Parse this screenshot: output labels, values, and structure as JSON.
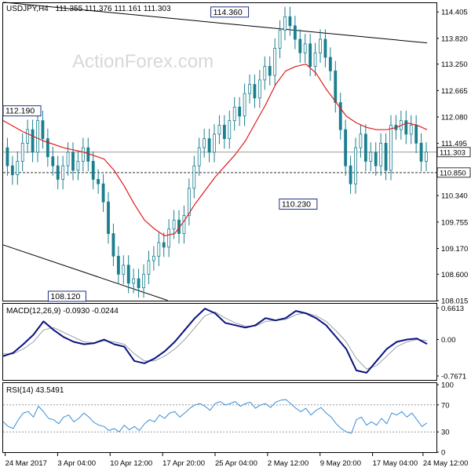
{
  "header": {
    "symbol": "USDJPY,H4",
    "ohlc": "111.355 111.376 111.161 111.303"
  },
  "watermark": "ActionForex.com",
  "colors": {
    "candles": "#1a7f8e",
    "ma": "#e01b1b",
    "trendline": "#000000",
    "macd_line": "#0a1280",
    "macd_signal": "#9aa0a6",
    "rsi_line": "#3b8fd9",
    "rsi_levels": "#999999",
    "price_line": "#999999",
    "level_line": "#333333"
  },
  "x_axis": {
    "labels": [
      "24 Mar 2017",
      "3 Apr 04:00",
      "10 Apr 12:00",
      "17 Apr 20:00",
      "25 Apr 04:00",
      "2 May 12:00",
      "9 May 20:00",
      "17 May 04:00",
      "24 May 12:00"
    ],
    "label_positions": [
      2,
      54,
      106,
      158,
      210,
      262,
      314,
      366,
      416
    ]
  },
  "chart_data": [
    {
      "type": "line",
      "panel": "price",
      "ylim": [
        108.015,
        114.6
      ],
      "y_ticks": [
        "114.405",
        "113.820",
        "113.250",
        "112.665",
        "112.080",
        "111.495",
        "110.340",
        "109.755",
        "109.170",
        "108.600",
        "108.015"
      ],
      "y_tick_values": [
        114.405,
        113.82,
        113.25,
        112.665,
        112.08,
        111.495,
        110.34,
        109.755,
        109.17,
        108.6,
        108.015
      ],
      "current_price": {
        "label": "111.303",
        "value": 111.303
      },
      "support_level": {
        "label": "110.850",
        "value": 110.85
      },
      "annotations": [
        {
          "label": "112.190",
          "x": 8,
          "value": 112.19
        },
        {
          "label": "108.120",
          "x": 82,
          "value": 108.12
        },
        {
          "label": "114.360",
          "x": 240,
          "value": 114.36
        },
        {
          "label": "110.230",
          "x": 297,
          "value": 110.23
        }
      ],
      "trendlines": [
        {
          "x": [
            0,
            420
          ],
          "y": [
            114.62,
            113.72
          ]
        },
        {
          "x": [
            0,
            163
          ],
          "y": [
            109.25,
            108.02
          ]
        }
      ],
      "series": [
        {
          "role": "close",
          "x": [
            0,
            5,
            10,
            15,
            20,
            25,
            30,
            35,
            40,
            45,
            50,
            55,
            60,
            65,
            70,
            75,
            80,
            85,
            90,
            95,
            100,
            105,
            110,
            115,
            120,
            125,
            130,
            135,
            140,
            145,
            150,
            155,
            160,
            165,
            170,
            175,
            180,
            185,
            190,
            195,
            200,
            205,
            210,
            215,
            220,
            225,
            230,
            235,
            240,
            245,
            250,
            255,
            260,
            265,
            270,
            275,
            280,
            285,
            290,
            295,
            300,
            305,
            310,
            315,
            320,
            325,
            330,
            335,
            340,
            345,
            350,
            355,
            360,
            365,
            370,
            375,
            380,
            385,
            390,
            395,
            400,
            405,
            410,
            415,
            420
          ],
          "y": [
            111.4,
            111.0,
            110.8,
            111.1,
            111.5,
            111.8,
            111.3,
            112.0,
            111.6,
            111.2,
            111.0,
            110.7,
            111.0,
            111.3,
            110.9,
            111.1,
            111.4,
            111.1,
            110.7,
            110.6,
            110.2,
            109.5,
            109.0,
            108.6,
            108.8,
            108.4,
            108.5,
            108.3,
            108.6,
            108.9,
            109.0,
            109.3,
            109.2,
            109.6,
            109.8,
            109.5,
            109.9,
            110.5,
            111.0,
            111.4,
            111.6,
            111.3,
            111.7,
            111.9,
            111.6,
            112.0,
            112.3,
            112.1,
            112.6,
            112.8,
            112.5,
            112.9,
            113.2,
            113.0,
            113.6,
            114.0,
            114.3,
            114.1,
            113.8,
            113.5,
            113.7,
            113.2,
            113.5,
            113.8,
            113.4,
            113.1,
            112.4,
            111.8,
            111.0,
            110.6,
            111.4,
            111.7,
            111.1,
            111.3,
            111.0,
            111.5,
            110.9,
            111.9,
            111.8,
            112.0,
            111.7,
            111.9,
            111.5,
            111.1,
            111.303
          ]
        },
        {
          "role": "moving-average",
          "x": [
            0,
            20,
            40,
            60,
            80,
            100,
            110,
            120,
            130,
            140,
            150,
            160,
            170,
            180,
            190,
            200,
            210,
            220,
            230,
            240,
            250,
            260,
            270,
            280,
            290,
            300,
            310,
            320,
            330,
            340,
            350,
            360,
            370,
            380,
            390,
            400,
            410,
            420
          ],
          "y": [
            112.0,
            111.75,
            111.55,
            111.4,
            111.3,
            111.15,
            110.9,
            110.55,
            110.15,
            109.8,
            109.6,
            109.45,
            109.5,
            109.8,
            110.15,
            110.45,
            110.75,
            111.0,
            111.25,
            111.55,
            111.95,
            112.35,
            112.8,
            113.1,
            113.2,
            113.25,
            113.05,
            112.7,
            112.4,
            112.1,
            111.95,
            111.85,
            111.8,
            111.8,
            111.85,
            111.95,
            111.9,
            111.8
          ]
        }
      ]
    },
    {
      "type": "line",
      "panel": "macd",
      "title": "MACD(12,26,9) -0.0930 -0.0244",
      "ylim": [
        -0.85,
        0.75
      ],
      "y_ticks": [
        "0.6613",
        "0.00",
        "-0.7671"
      ],
      "y_tick_values": [
        0.6613,
        0.0,
        -0.7671
      ],
      "series": [
        {
          "role": "macd",
          "x": [
            0,
            10,
            20,
            30,
            40,
            50,
            60,
            70,
            80,
            90,
            100,
            110,
            120,
            130,
            140,
            150,
            160,
            170,
            180,
            190,
            200,
            210,
            220,
            230,
            240,
            250,
            260,
            270,
            280,
            290,
            300,
            310,
            320,
            330,
            340,
            350,
            360,
            370,
            380,
            390,
            400,
            410,
            420
          ],
          "y": [
            -0.35,
            -0.28,
            -0.1,
            0.1,
            0.38,
            0.2,
            0.05,
            -0.05,
            -0.1,
            -0.08,
            0.0,
            -0.1,
            -0.15,
            -0.45,
            -0.5,
            -0.4,
            -0.25,
            -0.05,
            0.2,
            0.45,
            0.65,
            0.55,
            0.35,
            0.3,
            0.25,
            0.3,
            0.45,
            0.4,
            0.45,
            0.6,
            0.55,
            0.45,
            0.3,
            0.05,
            -0.2,
            -0.65,
            -0.7,
            -0.45,
            -0.2,
            -0.05,
            0.0,
            0.02,
            -0.093
          ]
        },
        {
          "role": "signal",
          "x": [
            0,
            10,
            20,
            30,
            40,
            50,
            60,
            70,
            80,
            90,
            100,
            110,
            120,
            130,
            140,
            150,
            160,
            170,
            180,
            190,
            200,
            210,
            220,
            230,
            240,
            250,
            260,
            270,
            280,
            290,
            300,
            310,
            320,
            330,
            340,
            350,
            360,
            370,
            380,
            390,
            400,
            410,
            420
          ],
          "y": [
            -0.3,
            -0.3,
            -0.2,
            -0.05,
            0.2,
            0.25,
            0.15,
            0.05,
            -0.05,
            -0.07,
            -0.03,
            -0.05,
            -0.1,
            -0.3,
            -0.45,
            -0.45,
            -0.35,
            -0.2,
            0.0,
            0.25,
            0.5,
            0.58,
            0.45,
            0.35,
            0.28,
            0.28,
            0.38,
            0.4,
            0.42,
            0.52,
            0.56,
            0.5,
            0.38,
            0.18,
            -0.05,
            -0.4,
            -0.62,
            -0.55,
            -0.35,
            -0.15,
            -0.05,
            0.0,
            -0.0244
          ]
        }
      ]
    },
    {
      "type": "line",
      "panel": "rsi",
      "title": "RSI(14) 43.5491",
      "ylim": [
        0,
        100
      ],
      "y_ticks": [
        "100",
        "70",
        "30",
        "0"
      ],
      "y_tick_values": [
        100,
        70,
        30,
        0
      ],
      "levels": [
        70,
        30
      ],
      "series": [
        {
          "role": "rsi",
          "x": [
            0,
            5,
            10,
            15,
            20,
            25,
            30,
            35,
            40,
            45,
            50,
            55,
            60,
            65,
            70,
            75,
            80,
            85,
            90,
            95,
            100,
            105,
            110,
            115,
            120,
            125,
            130,
            135,
            140,
            145,
            150,
            155,
            160,
            165,
            170,
            175,
            180,
            185,
            190,
            195,
            200,
            205,
            210,
            215,
            220,
            225,
            230,
            235,
            240,
            245,
            250,
            255,
            260,
            265,
            270,
            275,
            280,
            285,
            290,
            295,
            300,
            305,
            310,
            315,
            320,
            325,
            330,
            335,
            340,
            345,
            350,
            355,
            360,
            365,
            370,
            375,
            380,
            385,
            390,
            395,
            400,
            405,
            410,
            415,
            420
          ],
          "y": [
            45,
            38,
            35,
            48,
            58,
            60,
            52,
            68,
            60,
            50,
            48,
            42,
            52,
            55,
            45,
            50,
            58,
            52,
            44,
            40,
            38,
            32,
            35,
            30,
            40,
            33,
            38,
            32,
            42,
            48,
            45,
            55,
            50,
            58,
            60,
            52,
            58,
            65,
            70,
            72,
            68,
            62,
            72,
            75,
            70,
            72,
            75,
            68,
            72,
            74,
            65,
            70,
            72,
            66,
            74,
            77,
            78,
            72,
            65,
            60,
            65,
            55,
            62,
            66,
            58,
            52,
            42,
            35,
            30,
            28,
            48,
            52,
            40,
            45,
            40,
            50,
            42,
            58,
            55,
            60,
            52,
            58,
            48,
            38,
            43.5
          ]
        }
      ]
    }
  ]
}
